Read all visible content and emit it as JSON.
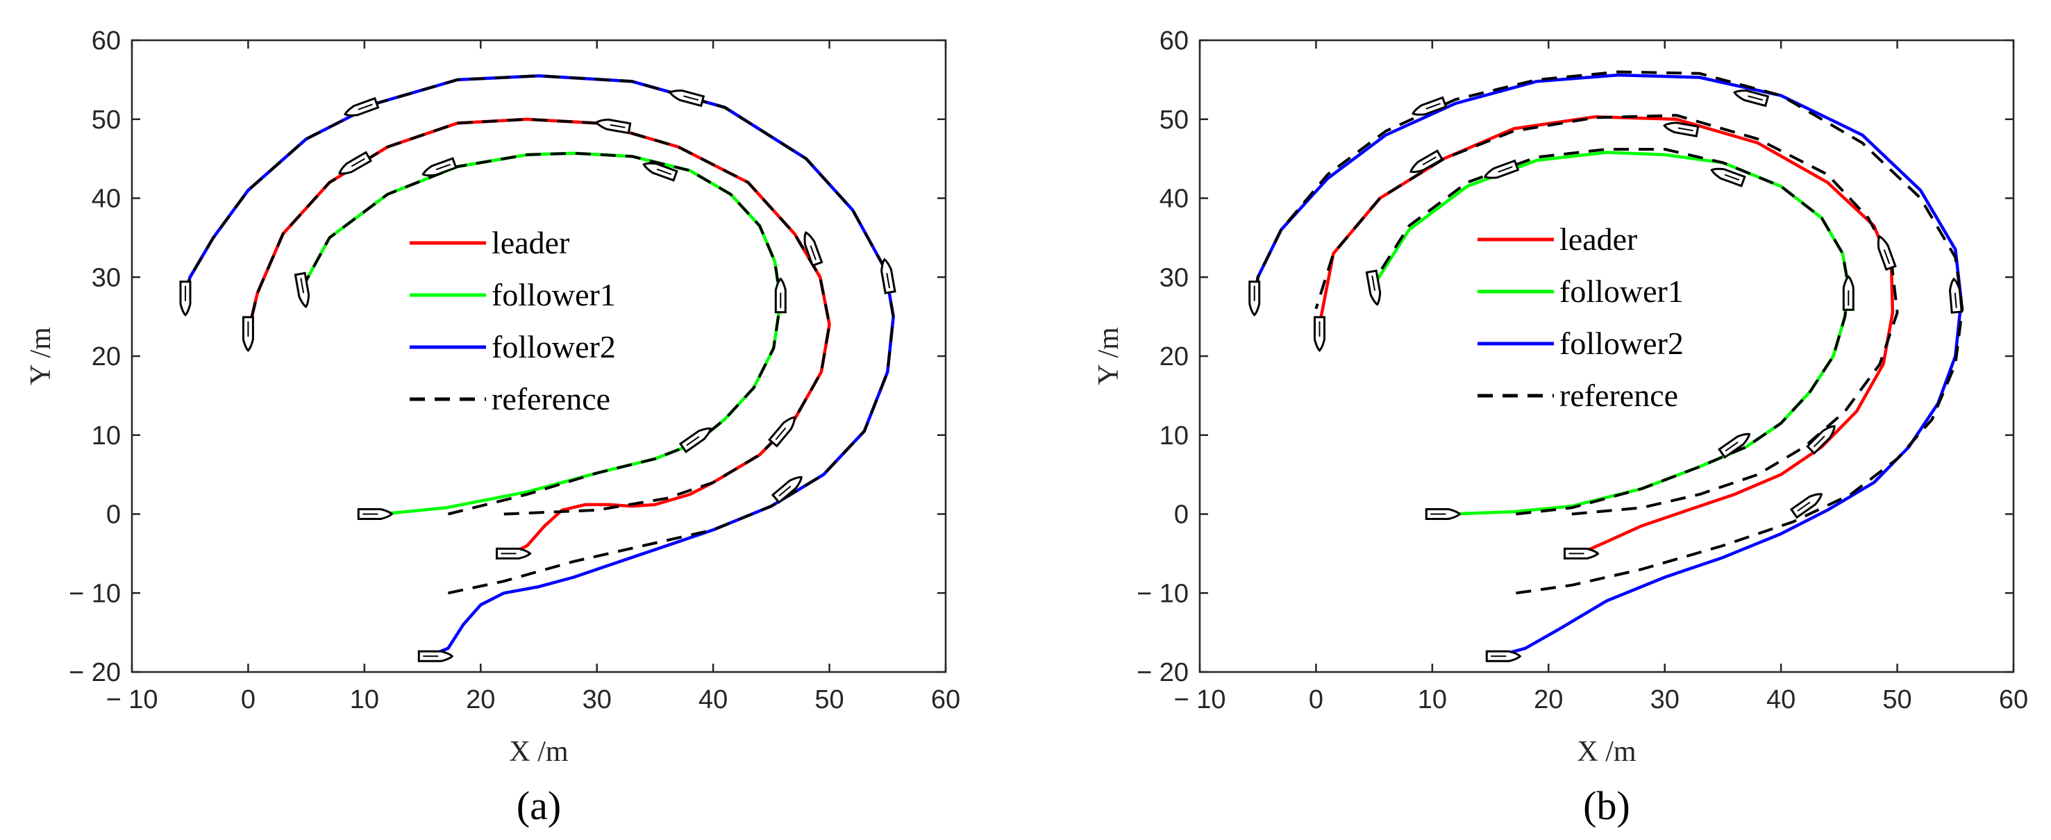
{
  "chart_data": [
    {
      "type": "line",
      "panel_label": "(a)",
      "xlabel": "X /m",
      "ylabel": "Y /m",
      "xlim": [
        -10,
        60
      ],
      "ylim": [
        -20,
        60
      ],
      "xticks": [
        "− 10",
        "0",
        "10",
        "20",
        "30",
        "40",
        "50",
        "60"
      ],
      "yticks": [
        "− 20",
        "− 10",
        "0",
        "10",
        "20",
        "30",
        "40",
        "50",
        "60"
      ],
      "grid": false,
      "legend": {
        "placement": "center",
        "entries": [
          "leader",
          "follower1",
          "follower2",
          "reference"
        ]
      },
      "series": [
        {
          "name": "reference",
          "color": "#000000",
          "style": "dashed",
          "paths": [
            {
              "x": [
                17.2,
                24,
                30,
                35,
                38.5,
                41,
                43.5,
                45.2,
                45.8,
                45.3,
                44,
                41.5,
                38,
                33,
                28,
                24,
                18,
                12,
                7,
                4.6
              ],
              "y": [
                0,
                2.5,
                5.2,
                7,
                9,
                12,
                16,
                21,
                27,
                32,
                36.5,
                40.5,
                43.5,
                45.3,
                45.7,
                45.5,
                44,
                40.5,
                35,
                28.5
              ]
            },
            {
              "x": [
                22,
                30,
                36,
                40,
                44,
                47,
                49.3,
                50,
                49.2,
                47,
                43,
                37,
                30,
                24,
                18,
                12,
                7,
                3,
                0.8,
                0
              ],
              "y": [
                0,
                0.5,
                2,
                4,
                7.5,
                12,
                18,
                24,
                30,
                35.5,
                42,
                46.5,
                49.5,
                50,
                49.5,
                46.5,
                42,
                35.5,
                28,
                23
              ]
            },
            {
              "x": [
                17.2,
                22,
                28,
                34,
                40,
                45,
                49.5,
                53,
                55,
                55.5,
                54.8,
                52,
                48,
                41,
                33,
                25,
                18,
                11,
                5,
                0,
                -3,
                -5,
                -5.6
              ],
              "y": [
                -10,
                -8.5,
                -6,
                -4,
                -2,
                1,
                5,
                10.5,
                18,
                25,
                31,
                38.5,
                45,
                51.5,
                54.8,
                55.5,
                55,
                52,
                47.5,
                41,
                35,
                30,
                27
              ]
            }
          ]
        },
        {
          "name": "leader",
          "color": "#ff0000",
          "style": "solid",
          "x": [
            22.7,
            24,
            25.5,
            27,
            29,
            31,
            33,
            35,
            38,
            40,
            44,
            47,
            49.3,
            50,
            49.2,
            47,
            43,
            37,
            30,
            24,
            18,
            12,
            7,
            3,
            0.8,
            0
          ],
          "y": [
            -5,
            -4,
            -1.5,
            0.5,
            1.2,
            1.2,
            1,
            1.2,
            2.5,
            4,
            7.5,
            12,
            18,
            24,
            30,
            35.5,
            42,
            46.5,
            49.5,
            50,
            49.5,
            46.5,
            42,
            35.5,
            28,
            23
          ]
        },
        {
          "name": "follower1",
          "color": "#00ff00",
          "style": "solid",
          "x": [
            11.5,
            17,
            24,
            30,
            35,
            38.5,
            41,
            43.5,
            45.2,
            45.8,
            45.3,
            44,
            41.5,
            38,
            33,
            28,
            24,
            18,
            12,
            7,
            4.6
          ],
          "y": [
            0,
            0.8,
            2.8,
            5.2,
            7,
            9,
            12,
            16,
            21,
            27,
            32,
            36.5,
            40.5,
            43.5,
            45.3,
            45.7,
            45.5,
            44,
            40.5,
            35,
            28.5
          ]
        },
        {
          "name": "follower2",
          "color": "#0000ff",
          "style": "solid",
          "x": [
            15.5,
            17.2,
            18.5,
            20,
            22,
            25,
            28,
            31,
            35,
            40,
            45,
            49.5,
            53,
            55,
            55.5,
            54.8,
            52,
            48,
            41,
            33,
            25,
            18,
            11,
            5,
            0,
            -3,
            -5,
            -5.6
          ],
          "y": [
            -18,
            -17,
            -14,
            -11.5,
            -10,
            -9.2,
            -8,
            -6.5,
            -4.5,
            -2,
            1,
            5,
            10.5,
            18,
            25,
            31,
            38.5,
            45,
            51.5,
            54.8,
            55.5,
            55,
            52,
            47.5,
            41,
            35,
            30,
            27
          ]
        }
      ],
      "ship_icons": [
        {
          "x": 10.8,
          "y": 0,
          "heading_deg": 0
        },
        {
          "x": 22.7,
          "y": -5,
          "heading_deg": 0
        },
        {
          "x": 16.0,
          "y": -18,
          "heading_deg": 0
        },
        {
          "x": -5.4,
          "y": 27.5,
          "heading_deg": -90
        },
        {
          "x": 0.0,
          "y": 23.0,
          "heading_deg": -90
        },
        {
          "x": 4.7,
          "y": 28.5,
          "heading_deg": -80
        },
        {
          "x": 38.5,
          "y": 9.5,
          "heading_deg": 35
        },
        {
          "x": 45.8,
          "y": 27.5,
          "heading_deg": 90
        },
        {
          "x": 35.5,
          "y": 43.5,
          "heading_deg": 160
        },
        {
          "x": 16.5,
          "y": 43.8,
          "heading_deg": 200
        },
        {
          "x": 46.0,
          "y": 10.5,
          "heading_deg": 50
        },
        {
          "x": 48.5,
          "y": 33.5,
          "heading_deg": 110
        },
        {
          "x": 31.5,
          "y": 49.2,
          "heading_deg": 170
        },
        {
          "x": 9.2,
          "y": 44.3,
          "heading_deg": 210
        },
        {
          "x": 46.4,
          "y": 3.2,
          "heading_deg": 40
        },
        {
          "x": 55.0,
          "y": 30.0,
          "heading_deg": 100
        },
        {
          "x": 37.8,
          "y": 52.8,
          "heading_deg": 165
        },
        {
          "x": 9.8,
          "y": 51.4,
          "heading_deg": 200
        }
      ]
    },
    {
      "type": "line",
      "panel_label": "(b)",
      "xlabel": "X /m",
      "ylabel": "Y /m",
      "xlim": [
        -10,
        60
      ],
      "ylim": [
        -20,
        60
      ],
      "xticks": [
        "− 10",
        "0",
        "10",
        "20",
        "30",
        "40",
        "50",
        "60"
      ],
      "yticks": [
        "− 20",
        "− 10",
        "0",
        "10",
        "20",
        "30",
        "40",
        "50",
        "60"
      ],
      "grid": false,
      "legend": {
        "placement": "center",
        "entries": [
          "leader",
          "follower1",
          "follower2",
          "reference"
        ]
      },
      "series": [
        {
          "name": "reference",
          "color": "#000000",
          "style": "dashed",
          "paths": [
            {
              "x": [
                17.2,
                22,
                28,
                33,
                37,
                40,
                42.5,
                44.5,
                45.5,
                45.8,
                45.3,
                43.5,
                40,
                35,
                30,
                25,
                19,
                13,
                8,
                5.2
              ],
              "y": [
                0,
                0.8,
                3.2,
                6,
                8.5,
                11.5,
                15.5,
                20,
                25,
                28.8,
                33,
                37.5,
                41.5,
                44.5,
                46.2,
                46.2,
                45.2,
                42,
                36.5,
                30
              ]
            },
            {
              "x": [
                22,
                28,
                33,
                38,
                42,
                45.5,
                48.5,
                50,
                49.5,
                47.5,
                44,
                38,
                31,
                24,
                17,
                11,
                5.5,
                1.5,
                0
              ],
              "y": [
                0,
                0.8,
                2.5,
                5,
                8.5,
                13,
                19,
                25.5,
                32,
                37.5,
                43,
                47.5,
                50.5,
                50.2,
                48.5,
                45,
                40,
                33,
                26
              ]
            },
            {
              "x": [
                17.2,
                22,
                28,
                35,
                41,
                46,
                50,
                53,
                55,
                55.6,
                55,
                52,
                47,
                40,
                33,
                26,
                19,
                12,
                6,
                1,
                -3,
                -5,
                -5.3
              ],
              "y": [
                -10,
                -9,
                -7,
                -4,
                -1,
                2.5,
                7,
                12,
                19,
                26,
                32.5,
                40,
                47,
                53,
                55.8,
                56,
                55,
                52.5,
                48.5,
                43,
                36,
                30,
                26
              ]
            }
          ]
        },
        {
          "name": "leader",
          "color": "#ff0000",
          "style": "solid",
          "x": [
            22.7,
            25,
            28,
            32,
            36,
            40,
            43.5,
            46.5,
            48.8,
            49.6,
            49.5,
            48,
            44,
            38,
            31,
            24,
            17,
            11,
            5.5,
            1.5,
            0.3
          ],
          "y": [
            -5,
            -3.5,
            -1.5,
            0.5,
            2.5,
            5,
            8.5,
            13,
            19,
            25.5,
            31,
            36.5,
            42,
            47,
            50,
            50.3,
            48.8,
            45,
            40,
            33,
            24
          ]
        },
        {
          "name": "follower1",
          "color": "#00ff00",
          "style": "solid",
          "x": [
            11.5,
            17,
            22,
            28,
            33,
            37,
            40,
            42.5,
            44.5,
            45.5,
            45.8,
            45.3,
            43.5,
            40,
            35,
            30,
            25,
            19,
            13,
            8,
            5.2
          ],
          "y": [
            0,
            0.3,
            1,
            3.2,
            6,
            8.5,
            11.5,
            15.5,
            20,
            25,
            28.8,
            33,
            37.5,
            41.5,
            44.5,
            45.5,
            45.8,
            44.8,
            41.5,
            36,
            29.5
          ]
        },
        {
          "name": "follower2",
          "color": "#0000ff",
          "style": "solid",
          "x": [
            15.5,
            18,
            21,
            25,
            30,
            35,
            40,
            44,
            48,
            51,
            53.5,
            55,
            55.5,
            55,
            52,
            47,
            40,
            33,
            26,
            19,
            12,
            6,
            1,
            -3,
            -5,
            -5.3
          ],
          "y": [
            -18,
            -17,
            -14.5,
            -11,
            -8,
            -5.5,
            -2.5,
            0.5,
            4,
            8.5,
            14,
            20,
            27,
            33.5,
            41,
            48,
            53,
            55.3,
            55.6,
            54.8,
            52,
            48,
            42.5,
            36,
            30,
            27
          ]
        }
      ],
      "ship_icons": [
        {
          "x": 10.8,
          "y": 0,
          "heading_deg": 0
        },
        {
          "x": 22.7,
          "y": -5,
          "heading_deg": 0
        },
        {
          "x": 16.0,
          "y": -18,
          "heading_deg": 0
        },
        {
          "x": -5.3,
          "y": 27.5,
          "heading_deg": -90
        },
        {
          "x": 0.3,
          "y": 23.0,
          "heading_deg": -90
        },
        {
          "x": 5.0,
          "y": 28.8,
          "heading_deg": -80
        },
        {
          "x": 36.0,
          "y": 8.8,
          "heading_deg": 35
        },
        {
          "x": 45.8,
          "y": 27.8,
          "heading_deg": 90
        },
        {
          "x": 35.5,
          "y": 42.8,
          "heading_deg": 160
        },
        {
          "x": 16.0,
          "y": 43.5,
          "heading_deg": 200
        },
        {
          "x": 43.5,
          "y": 9.5,
          "heading_deg": 45
        },
        {
          "x": 49.0,
          "y": 33.0,
          "heading_deg": 110
        },
        {
          "x": 31.5,
          "y": 48.8,
          "heading_deg": 170
        },
        {
          "x": 9.5,
          "y": 44.5,
          "heading_deg": 210
        },
        {
          "x": 42.2,
          "y": 1.2,
          "heading_deg": 35
        },
        {
          "x": 55.0,
          "y": 27.5,
          "heading_deg": 95
        },
        {
          "x": 37.5,
          "y": 52.8,
          "heading_deg": 165
        },
        {
          "x": 9.8,
          "y": 51.5,
          "heading_deg": 200
        }
      ]
    }
  ]
}
